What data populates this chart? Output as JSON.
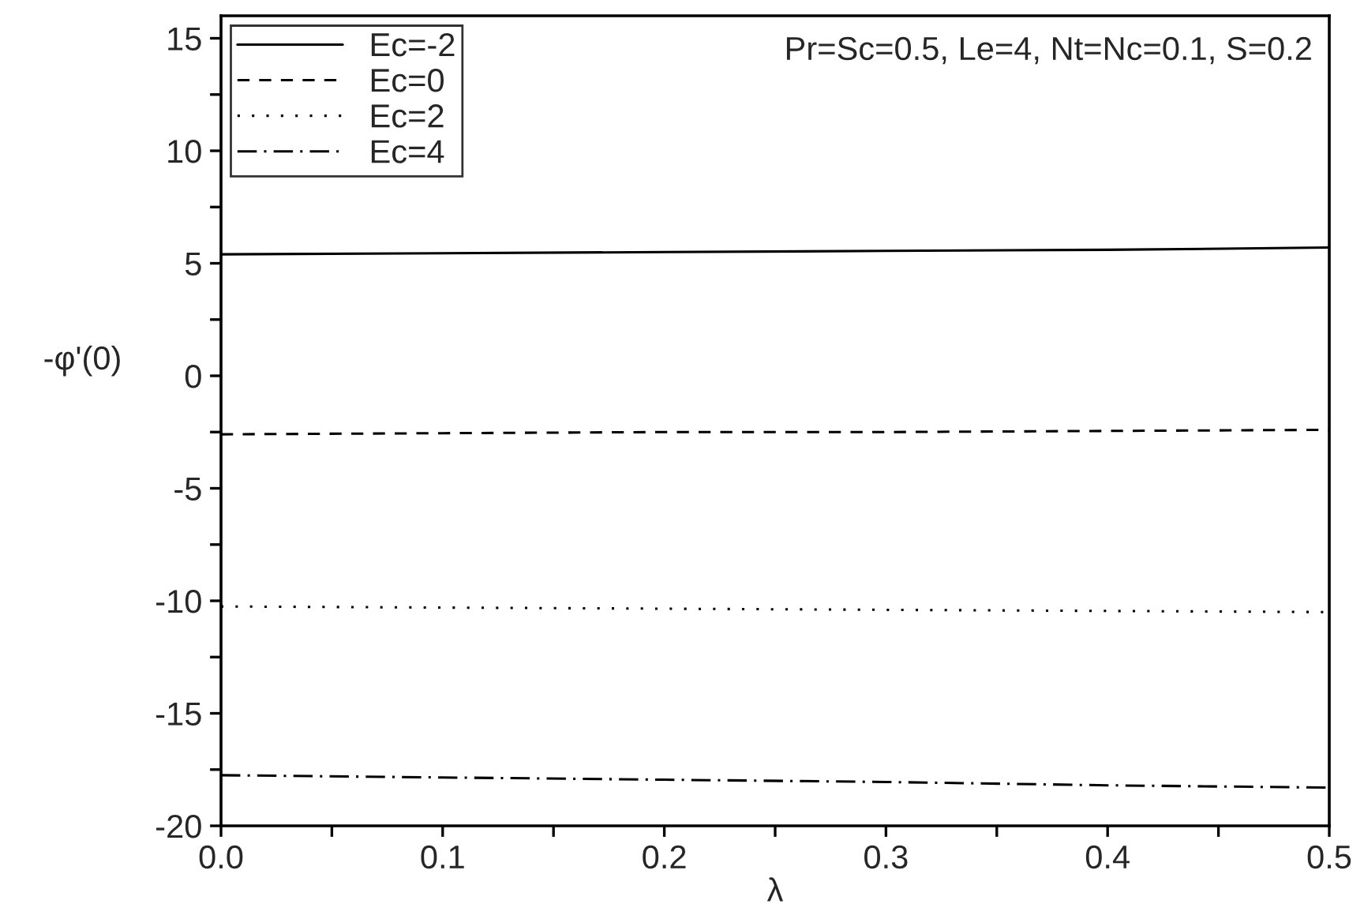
{
  "chart_data": {
    "type": "line",
    "xlabel": "λ",
    "ylabel": "-φ'(0)",
    "x": [
      0.0,
      0.1,
      0.2,
      0.3,
      0.4,
      0.5
    ],
    "series": [
      {
        "name": "Ec=-2",
        "color": "#000000",
        "line_style": "solid",
        "values": [
          5.4,
          5.45,
          5.5,
          5.55,
          5.6,
          5.7
        ]
      },
      {
        "name": "Ec=0",
        "color": "#000000",
        "line_style": "dashed",
        "values": [
          -2.6,
          -2.55,
          -2.5,
          -2.5,
          -2.45,
          -2.4
        ]
      },
      {
        "name": "Ec=2",
        "color": "#000000",
        "line_style": "dotted",
        "values": [
          -10.25,
          -10.3,
          -10.35,
          -10.4,
          -10.45,
          -10.5
        ]
      },
      {
        "name": "Ec=4",
        "color": "#000000",
        "line_style": "dashdot",
        "values": [
          -17.75,
          -17.85,
          -17.95,
          -18.05,
          -18.2,
          -18.3
        ]
      }
    ],
    "xlim": [
      0.0,
      0.5
    ],
    "ylim": [
      -20,
      16
    ],
    "xticks": [
      {
        "value": 0.0,
        "label": "0.0"
      },
      {
        "value": 0.05,
        "label": null
      },
      {
        "value": 0.1,
        "label": "0.1"
      },
      {
        "value": 0.15,
        "label": null
      },
      {
        "value": 0.2,
        "label": "0.2"
      },
      {
        "value": 0.25,
        "label": null
      },
      {
        "value": 0.3,
        "label": "0.3"
      },
      {
        "value": 0.35,
        "label": null
      },
      {
        "value": 0.4,
        "label": "0.4"
      },
      {
        "value": 0.45,
        "label": null
      },
      {
        "value": 0.5,
        "label": "0.5"
      }
    ],
    "yticks": [
      -20,
      {
        "value": -17.5,
        "label": null
      },
      -15,
      {
        "value": -12.5,
        "label": null
      },
      -10,
      {
        "value": -7.5,
        "label": null
      },
      -5,
      {
        "value": -2.5,
        "label": null
      },
      0,
      {
        "value": 2.5,
        "label": null
      },
      5,
      {
        "value": 7.5,
        "label": null
      },
      10,
      {
        "value": 12.5,
        "label": null
      },
      15
    ],
    "annotations": [
      "Pr=Sc=0.5, Le=4, Nt=Nc=0.1, S=0.2"
    ],
    "legend": "top left",
    "grid": false,
    "marker": "none"
  }
}
